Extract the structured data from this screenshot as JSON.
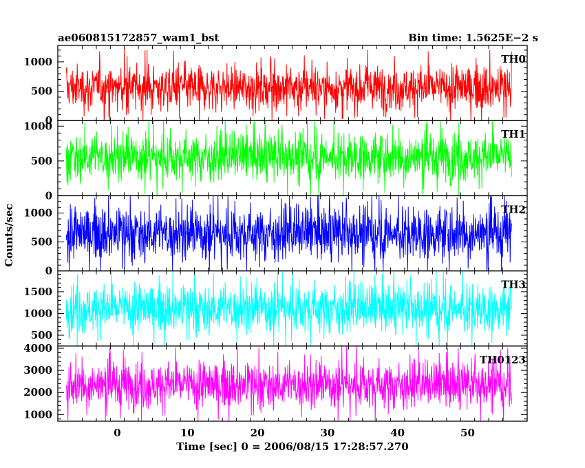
{
  "chart_data": {
    "type": "line",
    "title": "ae060815172857_wam1_bst",
    "subtitle": "Bin time: 1.5625E−2 s",
    "xlabel": "Time [sec] 0 = 2006/08/15 17:28:57.270",
    "ylabel": "Counts/sec",
    "xlim": [
      -8.5,
      58.5
    ],
    "x_ticks": [
      0,
      10,
      20,
      30,
      40,
      50
    ],
    "x_tick_labels": [
      "0",
      "10",
      "20",
      "30",
      "40",
      "50"
    ],
    "data_x_range": [
      -7.3,
      56.3
    ],
    "grid": false,
    "panels": [
      {
        "name": "TH0",
        "color": "#ff0000",
        "ylim": [
          0,
          1280
        ],
        "y_ticks": [
          0,
          500,
          1000
        ],
        "y_tick_labels": [
          "0",
          "500",
          "1000"
        ],
        "mean": 560,
        "spread": 190,
        "min": 0,
        "max": 1280
      },
      {
        "name": "TH1",
        "color": "#00ff00",
        "ylim": [
          0,
          1080
        ],
        "y_ticks": [
          0,
          500,
          1000
        ],
        "y_tick_labels": [
          "0",
          "500",
          "1000"
        ],
        "mean": 560,
        "spread": 170,
        "min": 0,
        "max": 1080
      },
      {
        "name": "TH2",
        "color": "#0000ff",
        "ylim": [
          0,
          1300
        ],
        "y_ticks": [
          0,
          500,
          1000
        ],
        "y_tick_labels": [
          "0",
          "500",
          "1000"
        ],
        "mean": 650,
        "spread": 230,
        "min": 0,
        "max": 1300
      },
      {
        "name": "TH3",
        "color": "#00ffff",
        "ylim": [
          250,
          1980
        ],
        "y_ticks": [
          500,
          1000,
          1500
        ],
        "y_tick_labels": [
          "500",
          "1000",
          "1500"
        ],
        "mean": 1120,
        "spread": 280,
        "min": 250,
        "max": 1980
      },
      {
        "name": "TH0123",
        "color": "#ff00ff",
        "ylim": [
          700,
          4100
        ],
        "y_ticks": [
          1000,
          2000,
          3000,
          4000
        ],
        "y_tick_labels": [
          "1000",
          "2000",
          "3000",
          "4000"
        ],
        "mean": 2350,
        "spread": 520,
        "min": 700,
        "max": 4100
      }
    ]
  }
}
